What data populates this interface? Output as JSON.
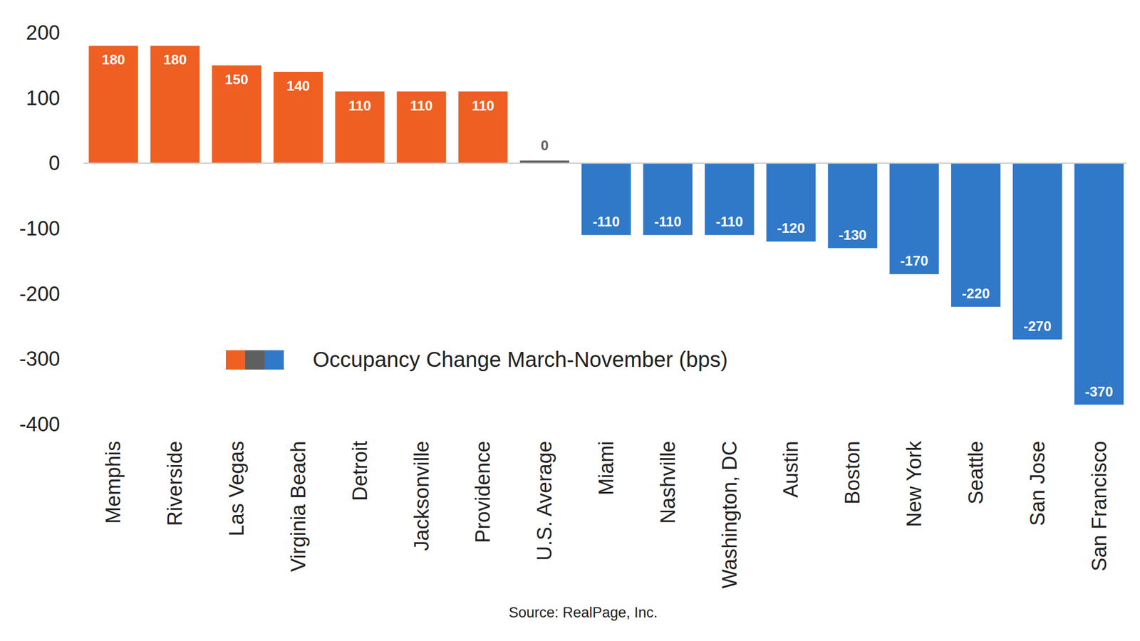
{
  "chart_data": {
    "type": "bar",
    "categories": [
      "Memphis",
      "Riverside",
      "Las Vegas",
      "Virginia Beach",
      "Detroit",
      "Jacksonville",
      "Providence",
      "U.S. Average",
      "Miami",
      "Nashville",
      "Washington, DC",
      "Austin",
      "Boston",
      "New York",
      "Seattle",
      "San Jose",
      "San Francisco"
    ],
    "series": [
      {
        "name": "Occupancy Change March-November (bps)",
        "values": [
          180,
          180,
          150,
          140,
          110,
          110,
          110,
          0,
          -110,
          -110,
          -110,
          -120,
          -130,
          -170,
          -220,
          -270,
          -370
        ],
        "colors": [
          "#ef5f22",
          "#ef5f22",
          "#ef5f22",
          "#ef5f22",
          "#ef5f22",
          "#ef5f22",
          "#ef5f22",
          "#5f5f5f",
          "#3078c8",
          "#3078c8",
          "#3078c8",
          "#3078c8",
          "#3078c8",
          "#3078c8",
          "#3078c8",
          "#3078c8",
          "#3078c8"
        ]
      }
    ],
    "ylim": [
      -400,
      200
    ],
    "yticks": [
      -400,
      -300,
      -200,
      -100,
      0,
      100,
      200
    ],
    "grid": false,
    "data_labels": true,
    "legend": "lower center",
    "source": "Source: RealPage, Inc."
  }
}
